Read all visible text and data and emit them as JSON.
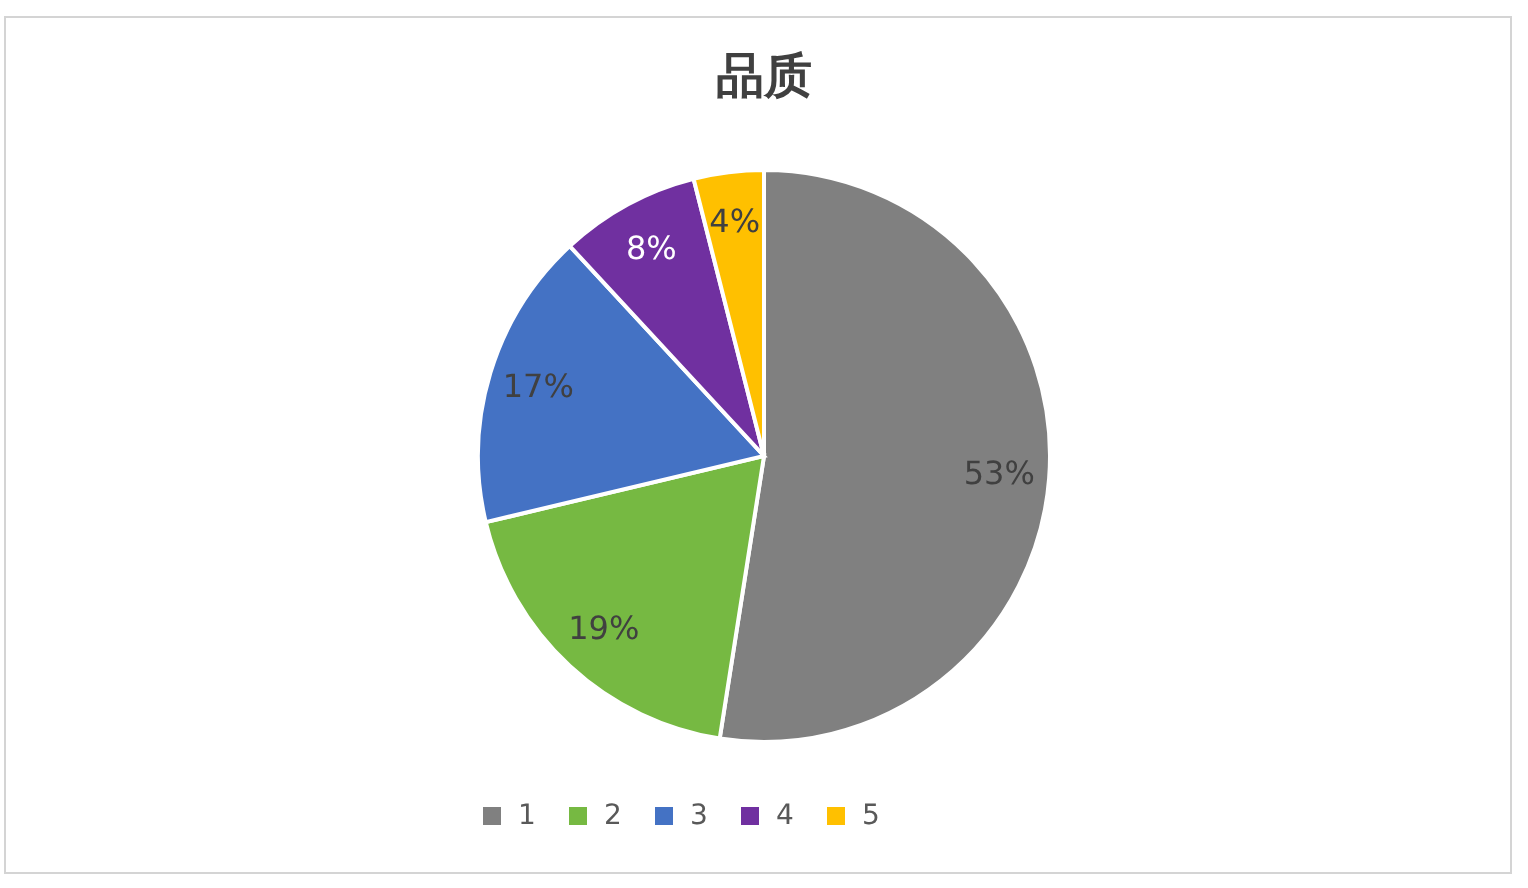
{
  "chart_data": {
    "type": "pie",
    "title": "品质",
    "categories": [
      "1",
      "2",
      "3",
      "4",
      "5"
    ],
    "values": [
      53,
      19,
      17,
      8,
      4
    ],
    "colors": [
      "#808080",
      "#76b942",
      "#4472c4",
      "#7030a0",
      "#ffc000"
    ],
    "value_labels": [
      "53%",
      "19%",
      "17%",
      "8%",
      "4%"
    ],
    "legend": "bottom"
  }
}
